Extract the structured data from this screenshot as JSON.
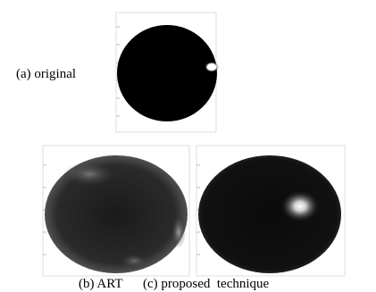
{
  "panels": [
    {
      "label": "(a) original"
    },
    {
      "label": "(b) ART"
    },
    {
      "label": "(c) proposed  technique"
    }
  ]
}
